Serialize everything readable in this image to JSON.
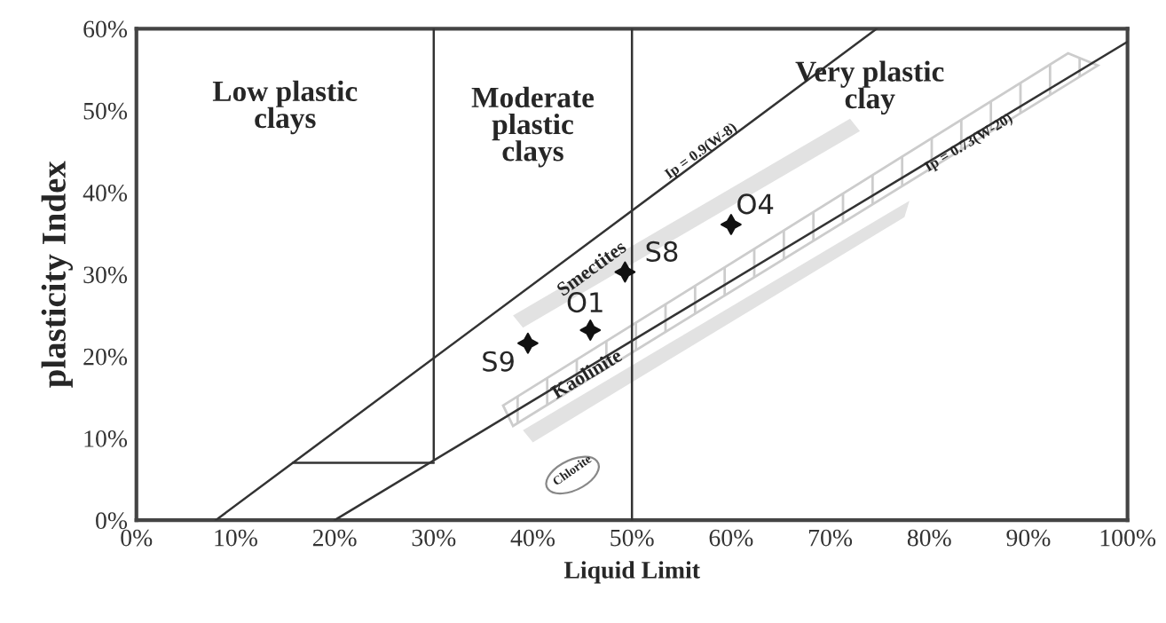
{
  "chart_data": {
    "type": "scatter",
    "xlabel": "Liquid Limit",
    "ylabel": "plasticity Index",
    "xlim": [
      0,
      100
    ],
    "ylim": [
      0,
      60
    ],
    "xticks": [
      {
        "value": 0,
        "label": "0%"
      },
      {
        "value": 10,
        "label": "10%"
      },
      {
        "value": 20,
        "label": "20%"
      },
      {
        "value": 30,
        "label": "30%"
      },
      {
        "value": 40,
        "label": "40%"
      },
      {
        "value": 50,
        "label": "50%"
      },
      {
        "value": 60,
        "label": "60%"
      },
      {
        "value": 70,
        "label": "70%"
      },
      {
        "value": 80,
        "label": "80%"
      },
      {
        "value": 90,
        "label": "90%"
      },
      {
        "value": 100,
        "label": "100%"
      }
    ],
    "yticks": [
      {
        "value": 0,
        "label": "0%"
      },
      {
        "value": 10,
        "label": "10%"
      },
      {
        "value": 20,
        "label": "20%"
      },
      {
        "value": 30,
        "label": "30%"
      },
      {
        "value": 40,
        "label": "40%"
      },
      {
        "value": 50,
        "label": "50%"
      },
      {
        "value": 60,
        "label": "60%"
      }
    ],
    "grid": false,
    "series": [
      {
        "marker": "star",
        "color": "#111111",
        "x": [
          39.5,
          45.8,
          49.3,
          60.0
        ],
        "values": [
          21.6,
          23.2,
          30.3,
          36.1
        ],
        "value_labels": [
          "S9",
          "O1",
          "S8",
          "O4"
        ]
      },
      {
        "type": "line",
        "color": "#333333",
        "x": [
          8,
          74.7
        ],
        "values": [
          0,
          60
        ],
        "marker": "none"
      },
      {
        "type": "line",
        "color": "#333333",
        "x": [
          20,
          100
        ],
        "values": [
          0,
          58.4
        ],
        "marker": "none"
      },
      {
        "type": "line",
        "color": "#333333",
        "x": [
          15.8,
          30
        ],
        "values": [
          7,
          7
        ],
        "marker": "none"
      },
      {
        "type": "line",
        "color": "#333333",
        "x": [
          30,
          30
        ],
        "values": [
          7.3,
          60
        ],
        "marker": "none"
      },
      {
        "type": "line",
        "color": "#333333",
        "x": [
          50,
          50
        ],
        "values": [
          0,
          60
        ],
        "marker": "none"
      }
    ],
    "annotations": [
      "Low plastic\nclays",
      "Moderate\nplastic\nclays",
      "Very plastic\nclay",
      {
        "text": "Ip = 0.9(W-8)",
        "x": 57,
        "y": 45
      },
      {
        "text": "Ip = 0.73(W-20)",
        "x": 84,
        "y": 46
      },
      "Smectites",
      "Kaolinite",
      "Chlorite"
    ]
  }
}
